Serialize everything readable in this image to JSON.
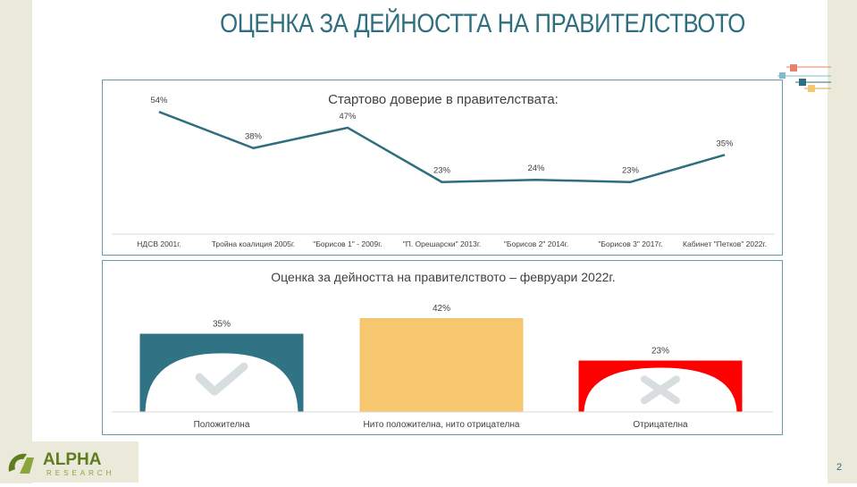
{
  "slide": {
    "title": "ОЦЕНКА ЗА ДЕЙНОСТТА НА ПРАВИТЕЛСТВОТО",
    "page_number": "2",
    "logo": {
      "main": "ALPHA",
      "sub": "RESEARCH"
    },
    "colors": {
      "title": "#2f6e7f",
      "line": "#2f6e7f",
      "positive": "#2f7385",
      "neutral": "#f6c76e",
      "negative": "#ff0000"
    }
  },
  "chart_data": [
    {
      "type": "line",
      "title": "Стартово доверие в правителствата:",
      "categories": [
        "НДСВ 2001г.",
        "Тройна коалиция 2005г.",
        "\"Борисов 1\" - 2009г.",
        "\"П. Орешарски\" 2013г.",
        "\"Борисов 2\" 2014г.",
        "\"Борисов 3\" 2017г.",
        "Кабинет \"Петков\" 2022г."
      ],
      "values": [
        54,
        38,
        47,
        23,
        24,
        23,
        35
      ],
      "labels": [
        "54%",
        "38%",
        "47%",
        "23%",
        "24%",
        "23%",
        "35%"
      ],
      "ylim": [
        0,
        60
      ]
    },
    {
      "type": "bar",
      "title": "Оценка за дейността на правителството – февруари 2022г.",
      "categories": [
        "Положителна",
        "Нито положителна, нито отрицателна",
        "Отрицателна"
      ],
      "values": [
        35,
        42,
        23
      ],
      "labels": [
        "35%",
        "42%",
        "23%"
      ],
      "icons": [
        "check-icon",
        "",
        "x-icon"
      ],
      "colors": [
        "#2f7385",
        "#f6c76e",
        "#ff0000"
      ],
      "ylim": [
        0,
        45
      ]
    }
  ]
}
